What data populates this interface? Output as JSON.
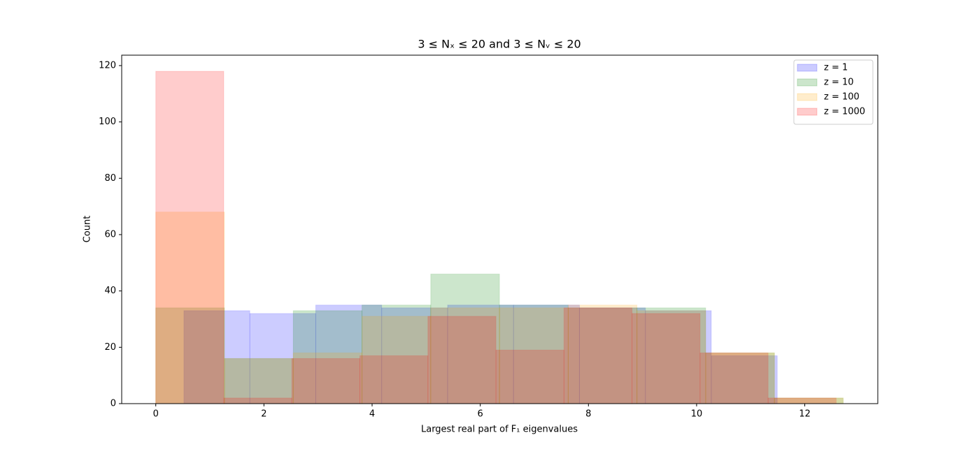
{
  "chart_data": {
    "type": "histogram",
    "title": "3 ≤ Nₓ ≤ 20 and 3 ≤ Nᵥ ≤ 20",
    "x_label": "Largest real part of F₁ eigenvalues",
    "y_label": "Count",
    "xlim": [
      -0.63,
      13.35
    ],
    "ylim": [
      0,
      123.7
    ],
    "xticks": [
      0,
      2,
      4,
      6,
      8,
      10,
      12
    ],
    "yticks": [
      0,
      20,
      40,
      60,
      80,
      100,
      120
    ],
    "legend_position": "upper right",
    "series": [
      {
        "name": "z = 1",
        "color": "blue",
        "bins": [
          0.52,
          1.739,
          2.958,
          4.177,
          5.396,
          6.615,
          7.834,
          9.053,
          10.272,
          11.491
        ],
        "values": [
          33,
          32,
          35,
          34,
          35,
          35,
          34,
          33,
          17
        ]
      },
      {
        "name": "z = 10",
        "color": "green",
        "bins": [
          0,
          1.271,
          2.542,
          3.813,
          5.084,
          6.355,
          7.626,
          8.897,
          10.168,
          11.439,
          12.71
        ],
        "values": [
          34,
          16,
          33,
          35,
          46,
          35,
          34,
          34,
          18,
          2
        ]
      },
      {
        "name": "z = 100",
        "color": "orange",
        "bins": [
          0,
          1.271,
          2.542,
          3.813,
          5.084,
          6.355,
          7.626,
          8.897,
          10.168,
          11.439,
          12.71
        ],
        "values": [
          68,
          16,
          18,
          31,
          34,
          34,
          35,
          33,
          18,
          2
        ]
      },
      {
        "name": "z = 1000",
        "color": "red",
        "bins": [
          0,
          1.258,
          2.516,
          3.774,
          5.032,
          6.29,
          7.548,
          8.806,
          10.064,
          11.322,
          12.58
        ],
        "values": [
          118,
          2,
          16,
          17,
          31,
          19,
          34,
          32,
          18,
          2
        ]
      }
    ]
  }
}
